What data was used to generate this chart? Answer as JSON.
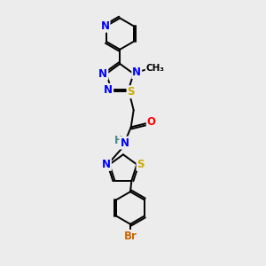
{
  "bg_color": "#ececec",
  "bond_color": "#000000",
  "atom_colors": {
    "N": "#0000ff",
    "S": "#ccaa00",
    "O": "#ff0000",
    "Br": "#cc6600",
    "H": "#555555",
    "C": "#000000"
  },
  "font_size_atom": 8.5,
  "font_size_methyl": 7.5,
  "lw": 1.4
}
